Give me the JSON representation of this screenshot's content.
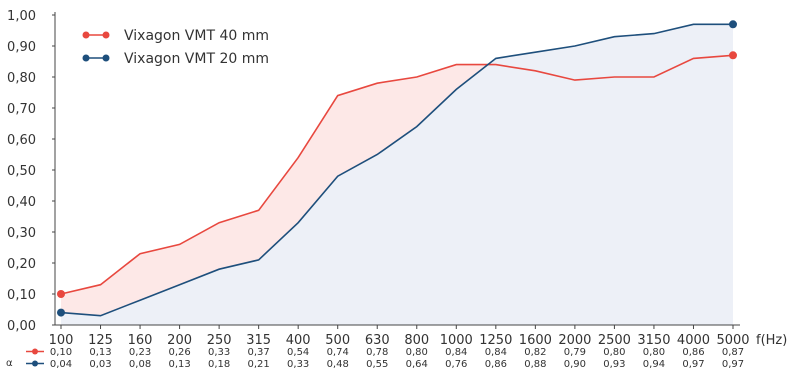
{
  "chart_data": {
    "type": "line",
    "categories": [
      "100",
      "125",
      "160",
      "200",
      "250",
      "315",
      "400",
      "500",
      "630",
      "800",
      "1000",
      "1250",
      "1600",
      "2000",
      "2500",
      "3150",
      "4000",
      "5000"
    ],
    "xlabel": "f(Hz)",
    "ylabel": "α",
    "ylim": [
      0,
      1
    ],
    "yticks": [
      "0,00",
      "0,10",
      "0,20",
      "0,30",
      "0,40",
      "0,50",
      "0,60",
      "0,70",
      "0,80",
      "0,90",
      "1,00"
    ],
    "legend_position": "top-left",
    "grid": false,
    "series": [
      {
        "name": "Vixagon VMT 40 mm",
        "color": "#e8483f",
        "fill": "#fde8e7",
        "values": [
          0.1,
          0.13,
          0.23,
          0.26,
          0.33,
          0.37,
          0.54,
          0.74,
          0.78,
          0.8,
          0.84,
          0.84,
          0.82,
          0.79,
          0.8,
          0.8,
          0.86,
          0.87
        ],
        "labels": [
          "0,10",
          "0,13",
          "0,23",
          "0,26",
          "0,33",
          "0,37",
          "0,54",
          "0,74",
          "0,78",
          "0,80",
          "0,84",
          "0,84",
          "0,82",
          "0,79",
          "0,80",
          "0,80",
          "0,86",
          "0,87"
        ]
      },
      {
        "name": "Vixagon VMT 20 mm",
        "color": "#1e4f7c",
        "fill": "#edf0f7",
        "values": [
          0.04,
          0.03,
          0.08,
          0.13,
          0.18,
          0.21,
          0.33,
          0.48,
          0.55,
          0.64,
          0.76,
          0.86,
          0.88,
          0.9,
          0.93,
          0.94,
          0.97,
          0.97
        ],
        "labels": [
          "0,04",
          "0,03",
          "0,08",
          "0,13",
          "0,18",
          "0,21",
          "0,33",
          "0,48",
          "0,55",
          "0,64",
          "0,76",
          "0,86",
          "0,88",
          "0,90",
          "0,93",
          "0,94",
          "0,97",
          "0,97"
        ]
      }
    ]
  }
}
